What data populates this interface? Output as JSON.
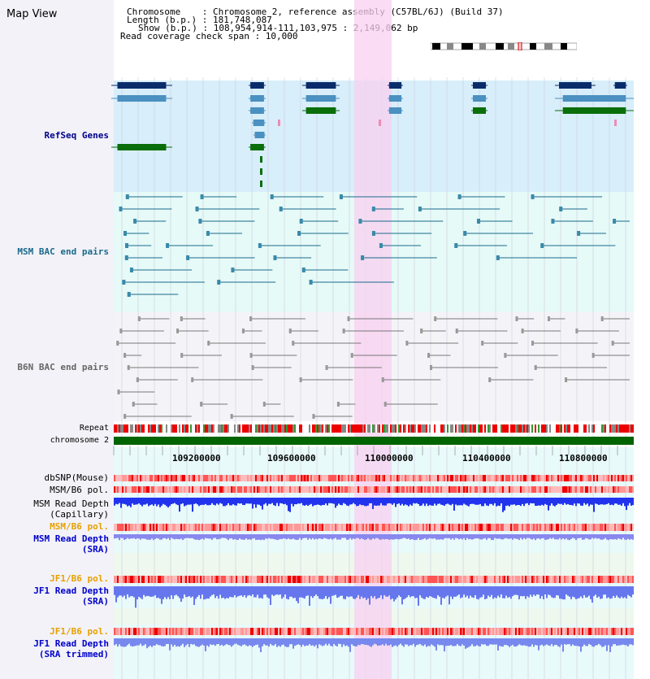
{
  "header": {
    "title": "Map View",
    "lines": [
      "Chromosome    : Chromosome 2, reference assembly (C57BL/6J) (Build 37)",
      "Length (b.p.) : 181,748,087",
      "Show (b.p.) : 108,954,914-111,103,975 : 2,149,062 bp",
      "Read coverage check span : 10,000"
    ]
  },
  "tracks": {
    "refseq": "RefSeq Genes",
    "msm_bac": "MSM BAC end pairs",
    "b6n_bac": "B6N BAC end pairs",
    "repeat": "Repeat",
    "chromosome": "chromosome 2",
    "dbsnp": "dbSNP(Mouse)",
    "msm_pol1": "MSM/B6 pol.",
    "msm_depth_cap1": "MSM Read Depth",
    "msm_depth_cap2": "(Capillary)",
    "msm_pol2": "MSM/B6 pol.",
    "msm_depth_sra1": "MSM Read Depth",
    "msm_depth_sra2": "(SRA)",
    "jf1_pol1": "JF1/B6 pol.",
    "jf1_depth1": "JF1 Read Depth",
    "jf1_depth2": "(SRA)",
    "jf1_pol2": "JF1/B6 pol.",
    "jf1_trim1": "JF1 Read Depth",
    "jf1_trim2": "(SRA trimmed)"
  },
  "axis": {
    "ticks": [
      "109200000",
      "109600000",
      "110000000",
      "110400000",
      "110800000"
    ]
  },
  "colors": {
    "refseq_label": "#00008b",
    "msm_label": "#1a5f8a",
    "b6n_label": "#666666",
    "orange": "#e8a000",
    "blue": "#0000cc"
  }
}
